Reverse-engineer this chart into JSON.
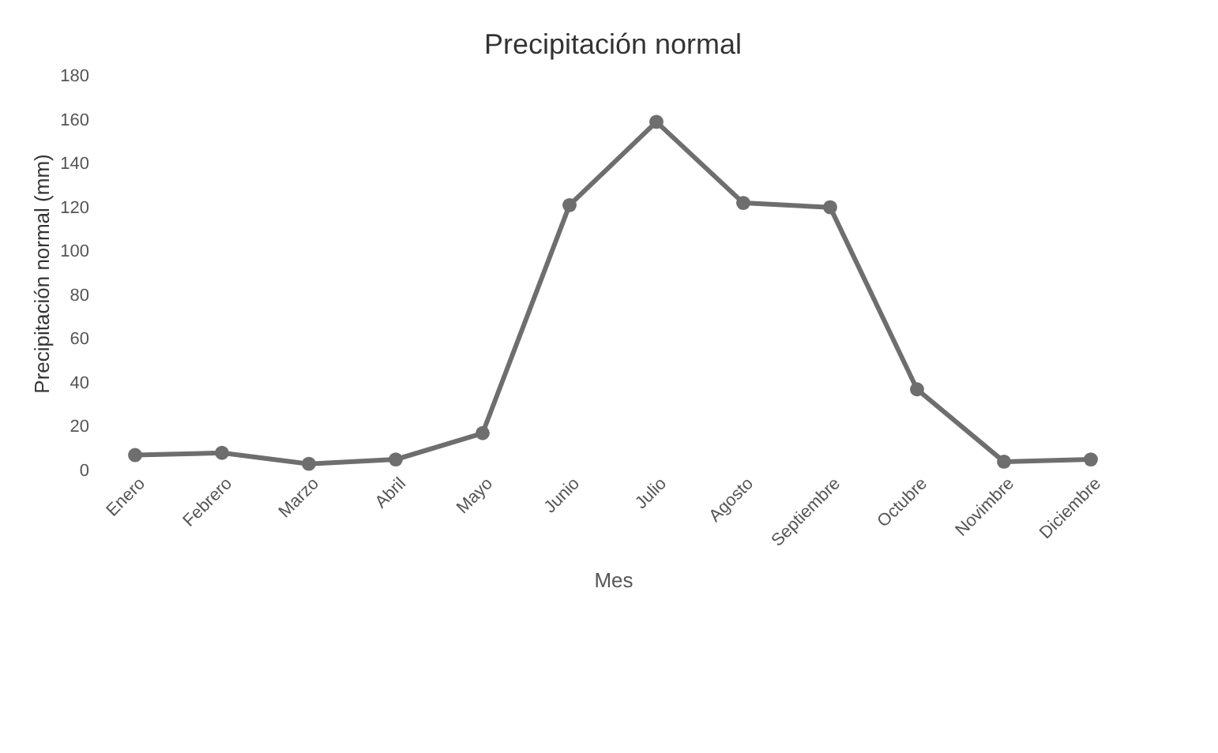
{
  "chart_data": {
    "type": "line",
    "title": "Precipitación normal",
    "xlabel": "Mes",
    "ylabel": "Precipitación normal (mm)",
    "categories": [
      "Enero",
      "Febrero",
      "Marzo",
      "Abril",
      "Mayo",
      "Junio",
      "Julio",
      "Agosto",
      "Septiembre",
      "Octubre",
      "Novimbre",
      "Diciembre"
    ],
    "series": [
      {
        "color": "#6e6e6e",
        "values": [
          7,
          8,
          3,
          5,
          17,
          121,
          159,
          122,
          120,
          37,
          4,
          5
        ]
      }
    ],
    "ylim": [
      0,
      180
    ],
    "yticks": [
      0,
      20,
      40,
      60,
      80,
      100,
      120,
      140,
      160,
      180
    ],
    "grid": false,
    "marker": "circle",
    "line_style": "solid",
    "legend": false
  }
}
